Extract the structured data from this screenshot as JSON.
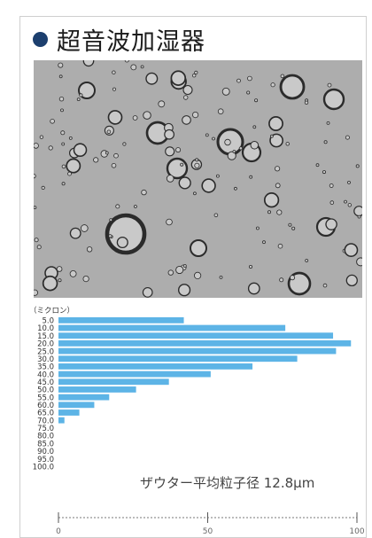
{
  "header": {
    "title": "超音波加湿器",
    "bullet_color": "#1c3f6e"
  },
  "photo": {
    "icon": "bubbles-micrograph"
  },
  "chart_data": {
    "type": "bar",
    "orientation": "horizontal",
    "ylabel": "（ミクロン）",
    "categories": [
      "5.0",
      "10.0",
      "15.0",
      "20.0",
      "25.0",
      "30.0",
      "35.0",
      "40.0",
      "45.0",
      "50.0",
      "55.0",
      "60.0",
      "65.0",
      "70.0",
      "75.0",
      "80.0",
      "85.0",
      "90.0",
      "95.0",
      "100.0"
    ],
    "values": [
      42,
      76,
      92,
      98,
      93,
      80,
      65,
      51,
      37,
      26,
      17,
      12,
      7,
      2,
      0,
      0,
      0,
      0,
      0,
      0
    ],
    "xlim": [
      0,
      100
    ],
    "xticks": [
      0,
      50,
      100
    ],
    "annotation": "ザウター平均粒子径  12.8μm",
    "bar_color": "#5db4e6",
    "grid": false
  }
}
